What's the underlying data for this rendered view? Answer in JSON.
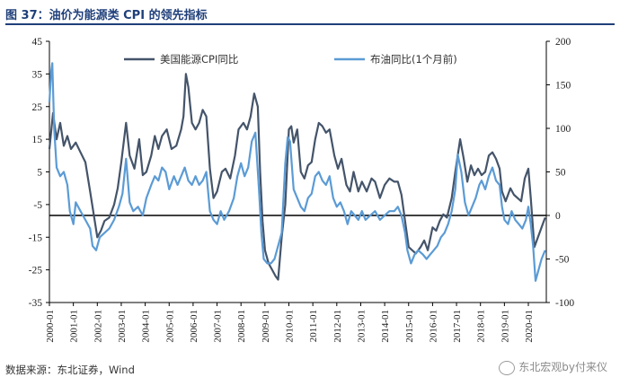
{
  "title": "图 37：油价为能源类 CPI 的领先指标",
  "source": "数据来源：东北证券，Wind",
  "watermark": "东北宏观by付来仪",
  "chart_data": {
    "type": "line",
    "left_axis": {
      "min": -35,
      "max": 45,
      "ticks": [
        "45",
        "35",
        "25",
        "15",
        "5",
        "-5",
        "-15",
        "-25",
        "-35"
      ]
    },
    "right_axis": {
      "min": -100,
      "max": 200,
      "ticks": [
        "200",
        "150",
        "100",
        "50",
        "0",
        "-50",
        "-100"
      ]
    },
    "x_labels": [
      "2000-01",
      "2001-01",
      "2002-01",
      "2003-01",
      "2004-01",
      "2005-01",
      "2006-01",
      "2007-01",
      "2008-01",
      "2009-01",
      "2010-01",
      "2011-01",
      "2012-01",
      "2013-01",
      "2014-01",
      "2015-01",
      "2016-01",
      "2017-01",
      "2018-01",
      "2019-01",
      "2020-01"
    ],
    "reference_line": 0,
    "series": [
      {
        "name": "美国能源CPI同比",
        "axis": "left",
        "color": "#44546a",
        "points": [
          [
            2000.0,
            12
          ],
          [
            2000.15,
            23
          ],
          [
            2000.3,
            15
          ],
          [
            2000.45,
            20
          ],
          [
            2000.6,
            13
          ],
          [
            2000.75,
            16
          ],
          [
            2000.9,
            12
          ],
          [
            2001.1,
            14
          ],
          [
            2001.3,
            11
          ],
          [
            2001.5,
            8
          ],
          [
            2001.7,
            -1
          ],
          [
            2001.85,
            -8
          ],
          [
            2002.0,
            -15
          ],
          [
            2002.15,
            -13
          ],
          [
            2002.3,
            -10
          ],
          [
            2002.5,
            -9
          ],
          [
            2002.7,
            -5
          ],
          [
            2002.85,
            0
          ],
          [
            2003.0,
            8
          ],
          [
            2003.2,
            20
          ],
          [
            2003.35,
            10
          ],
          [
            2003.55,
            6
          ],
          [
            2003.75,
            15
          ],
          [
            2003.9,
            4
          ],
          [
            2004.05,
            5
          ],
          [
            2004.25,
            10
          ],
          [
            2004.4,
            16
          ],
          [
            2004.55,
            12
          ],
          [
            2004.7,
            16
          ],
          [
            2004.9,
            18
          ],
          [
            2005.1,
            12
          ],
          [
            2005.3,
            13
          ],
          [
            2005.5,
            18
          ],
          [
            2005.6,
            22
          ],
          [
            2005.7,
            35
          ],
          [
            2005.8,
            31
          ],
          [
            2005.95,
            20
          ],
          [
            2006.1,
            18
          ],
          [
            2006.25,
            20
          ],
          [
            2006.4,
            24
          ],
          [
            2006.55,
            22
          ],
          [
            2006.7,
            6
          ],
          [
            2006.85,
            -3
          ],
          [
            2007.0,
            -1
          ],
          [
            2007.2,
            5
          ],
          [
            2007.35,
            6
          ],
          [
            2007.55,
            3
          ],
          [
            2007.75,
            10
          ],
          [
            2007.9,
            18
          ],
          [
            2008.1,
            20
          ],
          [
            2008.25,
            18
          ],
          [
            2008.4,
            22
          ],
          [
            2008.55,
            29
          ],
          [
            2008.7,
            25
          ],
          [
            2008.8,
            5
          ],
          [
            2008.9,
            -10
          ],
          [
            2009.0,
            -19
          ],
          [
            2009.15,
            -23
          ],
          [
            2009.3,
            -25
          ],
          [
            2009.45,
            -27
          ],
          [
            2009.55,
            -28
          ],
          [
            2009.7,
            -15
          ],
          [
            2009.85,
            -5
          ],
          [
            2010.0,
            18
          ],
          [
            2010.1,
            19
          ],
          [
            2010.2,
            14
          ],
          [
            2010.35,
            18
          ],
          [
            2010.5,
            5
          ],
          [
            2010.65,
            3
          ],
          [
            2010.8,
            7
          ],
          [
            2010.95,
            8
          ],
          [
            2011.1,
            15
          ],
          [
            2011.25,
            20
          ],
          [
            2011.4,
            19
          ],
          [
            2011.55,
            17
          ],
          [
            2011.7,
            18
          ],
          [
            2011.9,
            10
          ],
          [
            2012.05,
            6
          ],
          [
            2012.2,
            9
          ],
          [
            2012.4,
            1
          ],
          [
            2012.55,
            -1
          ],
          [
            2012.7,
            5
          ],
          [
            2012.9,
            -1
          ],
          [
            2013.05,
            2
          ],
          [
            2013.25,
            -1
          ],
          [
            2013.45,
            3
          ],
          [
            2013.6,
            2
          ],
          [
            2013.8,
            -3
          ],
          [
            2014.0,
            1
          ],
          [
            2014.2,
            3
          ],
          [
            2014.4,
            2
          ],
          [
            2014.55,
            2
          ],
          [
            2014.7,
            -2
          ],
          [
            2014.85,
            -10
          ],
          [
            2015.0,
            -18
          ],
          [
            2015.15,
            -19
          ],
          [
            2015.3,
            -20
          ],
          [
            2015.5,
            -18
          ],
          [
            2015.65,
            -16
          ],
          [
            2015.8,
            -19
          ],
          [
            2016.0,
            -12
          ],
          [
            2016.15,
            -13
          ],
          [
            2016.3,
            -10
          ],
          [
            2016.45,
            -8
          ],
          [
            2016.6,
            -9
          ],
          [
            2016.8,
            -3
          ],
          [
            2016.95,
            5
          ],
          [
            2017.05,
            10
          ],
          [
            2017.15,
            15
          ],
          [
            2017.3,
            9
          ],
          [
            2017.45,
            2
          ],
          [
            2017.6,
            7
          ],
          [
            2017.75,
            4
          ],
          [
            2017.9,
            6
          ],
          [
            2018.05,
            4
          ],
          [
            2018.2,
            5
          ],
          [
            2018.35,
            10
          ],
          [
            2018.5,
            11
          ],
          [
            2018.65,
            9
          ],
          [
            2018.8,
            6
          ],
          [
            2018.9,
            -1
          ],
          [
            2019.05,
            -4
          ],
          [
            2019.25,
            0
          ],
          [
            2019.4,
            -2
          ],
          [
            2019.55,
            -3
          ],
          [
            2019.7,
            -4
          ],
          [
            2019.85,
            3
          ],
          [
            2020.0,
            6
          ],
          [
            2020.1,
            -3
          ],
          [
            2020.25,
            -18
          ],
          [
            2020.4,
            -15
          ],
          [
            2020.55,
            -12
          ],
          [
            2020.7,
            -9
          ]
        ]
      },
      {
        "name": "布油同比(1个月前)",
        "axis": "right",
        "color": "#5b9bd5",
        "points": [
          [
            2000.0,
            130
          ],
          [
            2000.07,
            165
          ],
          [
            2000.12,
            175
          ],
          [
            2000.2,
            100
          ],
          [
            2000.3,
            55
          ],
          [
            2000.45,
            45
          ],
          [
            2000.6,
            50
          ],
          [
            2000.75,
            35
          ],
          [
            2000.85,
            5
          ],
          [
            2001.0,
            -10
          ],
          [
            2001.1,
            15
          ],
          [
            2001.3,
            5
          ],
          [
            2001.5,
            -5
          ],
          [
            2001.7,
            -15
          ],
          [
            2001.8,
            -35
          ],
          [
            2001.95,
            -40
          ],
          [
            2002.1,
            -25
          ],
          [
            2002.3,
            -20
          ],
          [
            2002.5,
            -15
          ],
          [
            2002.7,
            -5
          ],
          [
            2002.9,
            10
          ],
          [
            2003.05,
            25
          ],
          [
            2003.2,
            65
          ],
          [
            2003.35,
            15
          ],
          [
            2003.5,
            5
          ],
          [
            2003.7,
            10
          ],
          [
            2003.9,
            0
          ],
          [
            2004.05,
            20
          ],
          [
            2004.25,
            35
          ],
          [
            2004.4,
            45
          ],
          [
            2004.55,
            40
          ],
          [
            2004.7,
            55
          ],
          [
            2004.85,
            50
          ],
          [
            2005.0,
            30
          ],
          [
            2005.2,
            45
          ],
          [
            2005.35,
            35
          ],
          [
            2005.5,
            45
          ],
          [
            2005.65,
            55
          ],
          [
            2005.8,
            40
          ],
          [
            2005.95,
            35
          ],
          [
            2006.1,
            45
          ],
          [
            2006.25,
            35
          ],
          [
            2006.4,
            40
          ],
          [
            2006.55,
            50
          ],
          [
            2006.7,
            5
          ],
          [
            2006.85,
            -5
          ],
          [
            2007.0,
            -10
          ],
          [
            2007.15,
            5
          ],
          [
            2007.3,
            -5
          ],
          [
            2007.5,
            5
          ],
          [
            2007.7,
            20
          ],
          [
            2007.85,
            45
          ],
          [
            2008.0,
            60
          ],
          [
            2008.15,
            45
          ],
          [
            2008.3,
            55
          ],
          [
            2008.45,
            85
          ],
          [
            2008.6,
            95
          ],
          [
            2008.75,
            30
          ],
          [
            2008.85,
            -20
          ],
          [
            2008.95,
            -50
          ],
          [
            2009.1,
            -55
          ],
          [
            2009.25,
            -55
          ],
          [
            2009.4,
            -50
          ],
          [
            2009.55,
            -35
          ],
          [
            2009.7,
            -20
          ],
          [
            2009.85,
            60
          ],
          [
            2009.95,
            90
          ],
          [
            2010.05,
            85
          ],
          [
            2010.2,
            30
          ],
          [
            2010.35,
            20
          ],
          [
            2010.5,
            10
          ],
          [
            2010.65,
            5
          ],
          [
            2010.8,
            20
          ],
          [
            2010.95,
            25
          ],
          [
            2011.1,
            45
          ],
          [
            2011.25,
            50
          ],
          [
            2011.4,
            40
          ],
          [
            2011.55,
            35
          ],
          [
            2011.7,
            45
          ],
          [
            2011.85,
            20
          ],
          [
            2012.0,
            10
          ],
          [
            2012.15,
            15
          ],
          [
            2012.3,
            5
          ],
          [
            2012.45,
            -10
          ],
          [
            2012.6,
            5
          ],
          [
            2012.75,
            0
          ],
          [
            2012.9,
            -5
          ],
          [
            2013.05,
            5
          ],
          [
            2013.2,
            -5
          ],
          [
            2013.4,
            0
          ],
          [
            2013.6,
            5
          ],
          [
            2013.8,
            -5
          ],
          [
            2014.0,
            0
          ],
          [
            2014.2,
            5
          ],
          [
            2014.4,
            5
          ],
          [
            2014.55,
            10
          ],
          [
            2014.7,
            0
          ],
          [
            2014.85,
            -20
          ],
          [
            2014.95,
            -40
          ],
          [
            2015.1,
            -55
          ],
          [
            2015.25,
            -45
          ],
          [
            2015.4,
            -40
          ],
          [
            2015.6,
            -45
          ],
          [
            2015.75,
            -50
          ],
          [
            2015.9,
            -45
          ],
          [
            2016.05,
            -40
          ],
          [
            2016.2,
            -35
          ],
          [
            2016.35,
            -25
          ],
          [
            2016.5,
            -20
          ],
          [
            2016.65,
            -10
          ],
          [
            2016.8,
            5
          ],
          [
            2016.95,
            30
          ],
          [
            2017.05,
            70
          ],
          [
            2017.2,
            50
          ],
          [
            2017.35,
            15
          ],
          [
            2017.5,
            0
          ],
          [
            2017.65,
            10
          ],
          [
            2017.8,
            20
          ],
          [
            2017.95,
            35
          ],
          [
            2018.05,
            40
          ],
          [
            2018.2,
            30
          ],
          [
            2018.35,
            45
          ],
          [
            2018.5,
            55
          ],
          [
            2018.65,
            40
          ],
          [
            2018.8,
            35
          ],
          [
            2018.9,
            10
          ],
          [
            2019.0,
            -5
          ],
          [
            2019.15,
            -10
          ],
          [
            2019.3,
            5
          ],
          [
            2019.45,
            -5
          ],
          [
            2019.6,
            -10
          ],
          [
            2019.75,
            -15
          ],
          [
            2019.9,
            -5
          ],
          [
            2020.0,
            10
          ],
          [
            2020.1,
            -10
          ],
          [
            2020.2,
            -35
          ],
          [
            2020.3,
            -75
          ],
          [
            2020.4,
            -65
          ],
          [
            2020.55,
            -50
          ],
          [
            2020.7,
            -40
          ]
        ]
      }
    ]
  }
}
